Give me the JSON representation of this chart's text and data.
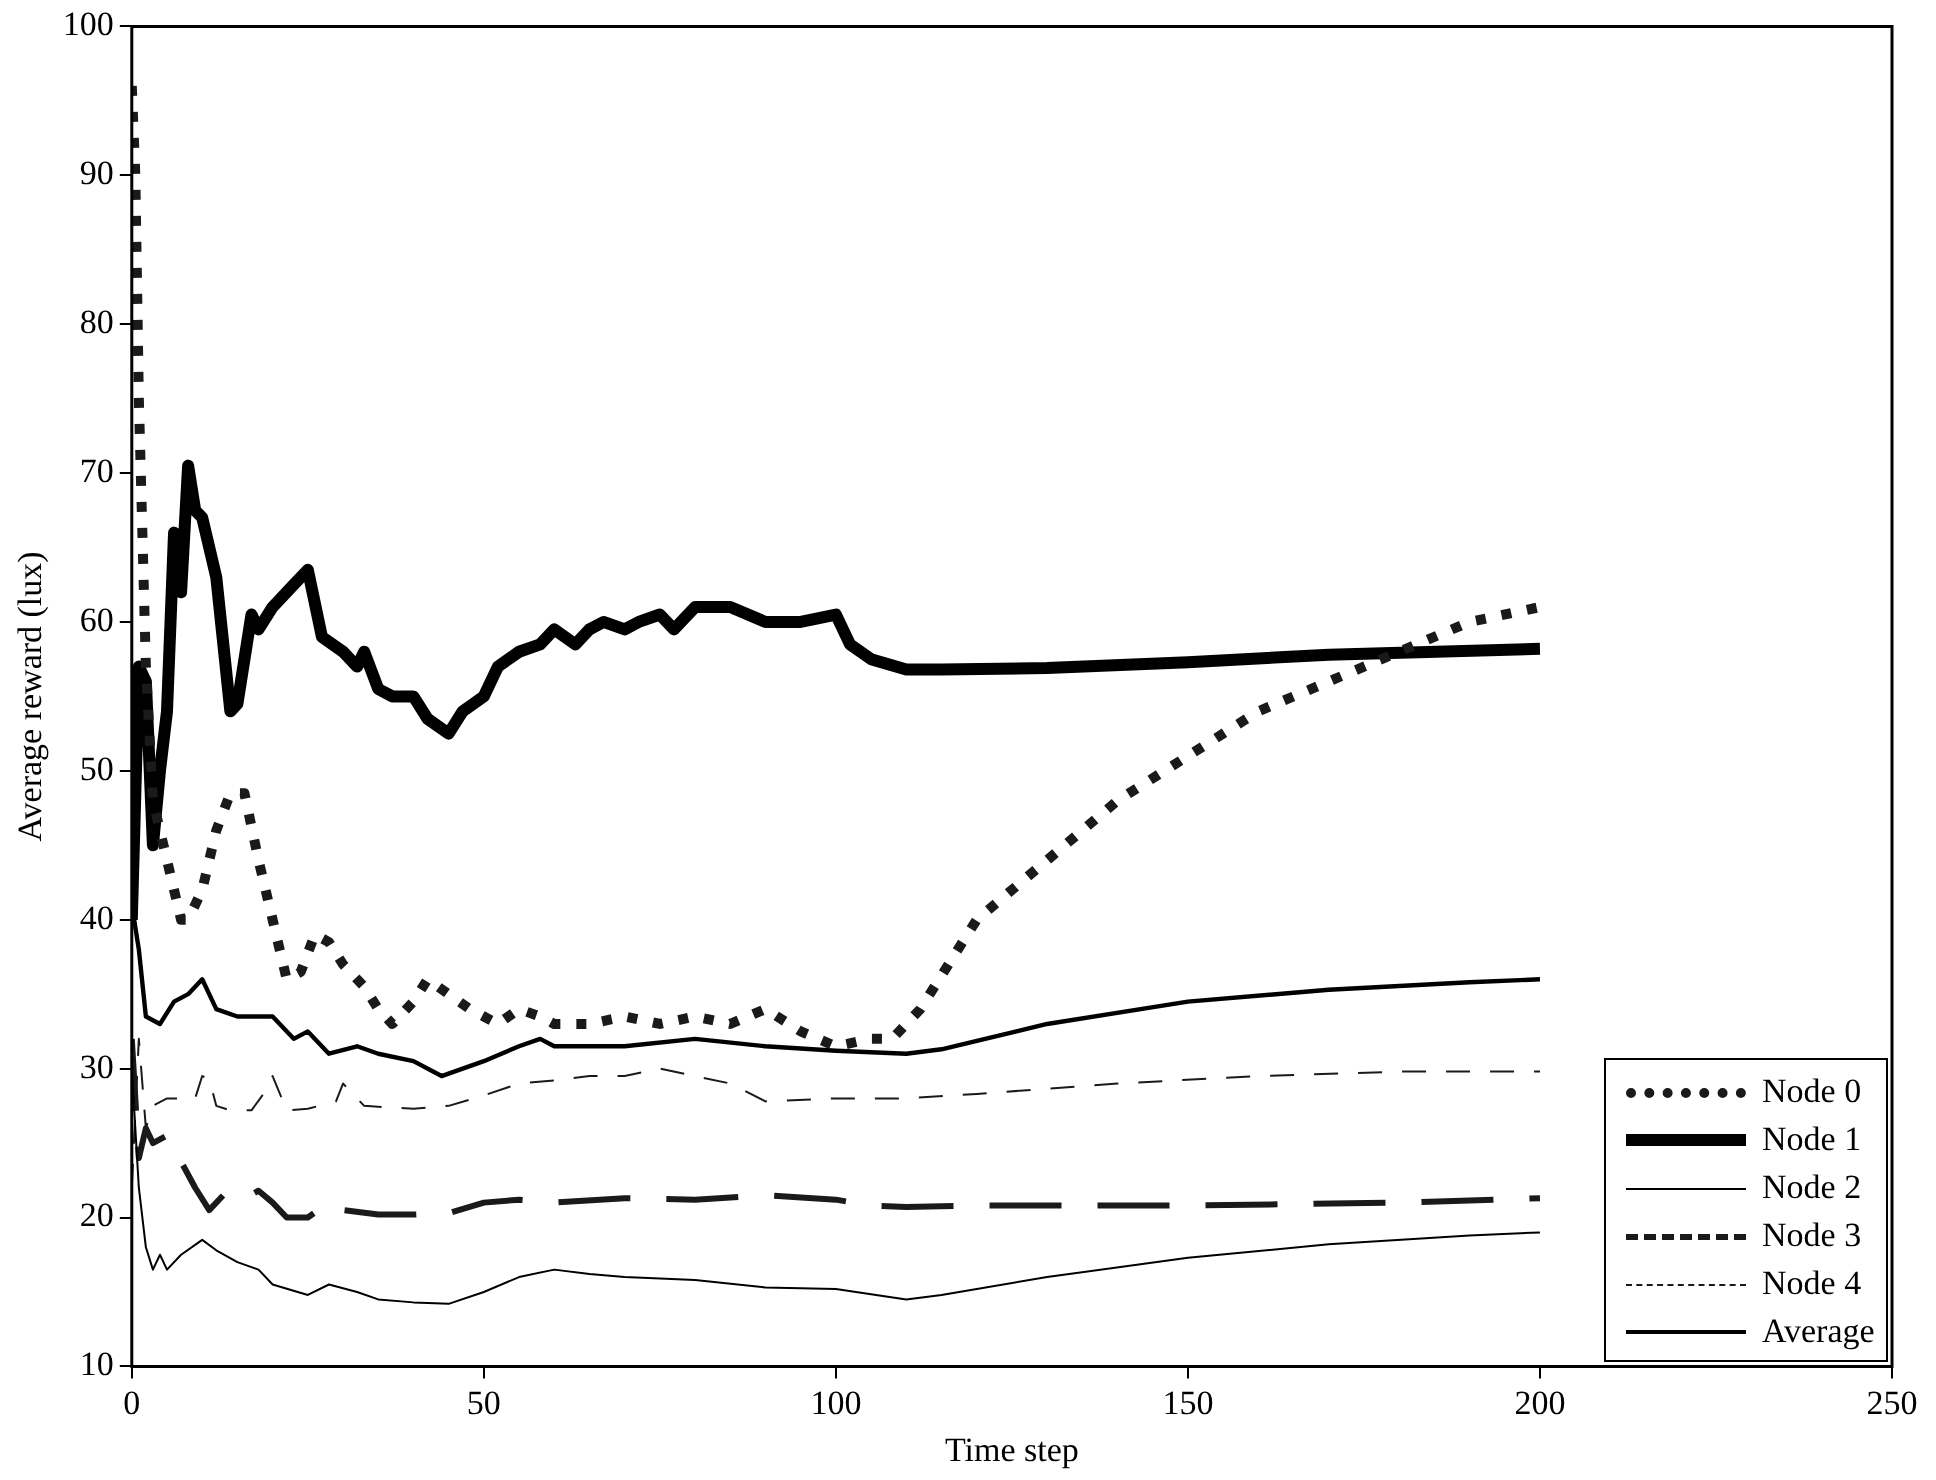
{
  "chart_data": {
    "type": "line",
    "xlabel": "Time step",
    "ylabel": "Average reward (lux)",
    "xlim": [
      0,
      250
    ],
    "ylim": [
      10,
      100
    ],
    "xticks": [
      0,
      50,
      100,
      150,
      200,
      250
    ],
    "yticks": [
      10,
      20,
      30,
      40,
      50,
      60,
      70,
      80,
      90,
      100
    ],
    "grid": false,
    "legend": "bottom right",
    "marker": "none",
    "series": [
      {
        "name": "Node 0",
        "color": "#1a1a1a",
        "line_style": "dotted",
        "x": [
          0,
          0.5,
          1,
          2,
          3,
          5,
          7,
          8,
          10,
          12,
          14,
          16,
          18,
          20,
          22,
          24,
          26,
          28,
          30,
          33,
          35,
          37,
          40,
          42,
          45,
          48,
          50,
          52,
          55,
          58,
          60,
          65,
          70,
          75,
          80,
          85,
          90,
          95,
          100,
          105,
          108,
          112,
          120,
          130,
          140,
          150,
          160,
          170,
          180,
          190,
          200
        ],
        "values": [
          96,
          90,
          75,
          57,
          48,
          44,
          40,
          40,
          42,
          46,
          48.5,
          48.5,
          44,
          40,
          36,
          36.5,
          39,
          38.5,
          37,
          35.5,
          34,
          33,
          34.5,
          36,
          35,
          34,
          33.5,
          33,
          34,
          33.5,
          33,
          33,
          33.5,
          33,
          33.5,
          33,
          34,
          32.5,
          31.5,
          32,
          32,
          34,
          40,
          44,
          48,
          51,
          54,
          56,
          58,
          60,
          61
        ]
      },
      {
        "name": "Node 1",
        "color": "#000000",
        "line_style": "solid",
        "x": [
          0,
          1,
          2,
          3,
          4,
          5,
          6,
          7,
          8,
          9,
          10,
          12,
          14,
          15,
          17,
          18,
          20,
          23,
          25,
          27,
          30,
          32,
          33,
          35,
          37,
          40,
          42,
          45,
          47,
          50,
          52,
          55,
          58,
          60,
          63,
          65,
          67,
          70,
          72,
          75,
          77,
          80,
          85,
          90,
          95,
          100,
          102,
          105,
          110,
          115,
          130,
          150,
          170,
          200
        ],
        "values": [
          40,
          57,
          56,
          45,
          50,
          54,
          66,
          62,
          70.5,
          67.5,
          67,
          63,
          54,
          54.5,
          60.5,
          59.5,
          61,
          62.5,
          63.5,
          59,
          58,
          57,
          58,
          55.5,
          55,
          55,
          53.5,
          52.5,
          54,
          55,
          57,
          58,
          58.5,
          59.5,
          58.5,
          59.5,
          60,
          59.5,
          60,
          60.5,
          59.5,
          61,
          61,
          60,
          60,
          60.5,
          58.5,
          57.5,
          56.8,
          56.8,
          56.9,
          57.3,
          57.8,
          58.2
        ]
      },
      {
        "name": "Node 2",
        "color": "#000000",
        "line_style": "solid",
        "x": [
          0,
          1,
          2,
          3,
          4,
          5,
          7,
          10,
          12,
          15,
          18,
          20,
          25,
          28,
          32,
          35,
          40,
          45,
          50,
          55,
          60,
          65,
          70,
          80,
          90,
          100,
          110,
          115,
          130,
          150,
          170,
          190,
          200
        ],
        "values": [
          30,
          22,
          18,
          16.5,
          17.5,
          16.5,
          17.5,
          18.5,
          17.8,
          17,
          16.5,
          15.5,
          14.8,
          15.5,
          15,
          14.5,
          14.3,
          14.2,
          15,
          16,
          16.5,
          16.2,
          16,
          15.8,
          15.3,
          15.2,
          14.5,
          14.8,
          16,
          17.3,
          18.2,
          18.8,
          19
        ]
      },
      {
        "name": "Node 3",
        "color": "#1a1a1a",
        "line_style": "dashed",
        "x": [
          0,
          1,
          2,
          3,
          5,
          9,
          11,
          13,
          15,
          18,
          20,
          22,
          25,
          28,
          30,
          35,
          40,
          45,
          50,
          55,
          60,
          70,
          80,
          90,
          100,
          105,
          110,
          120,
          150,
          180,
          200
        ],
        "values": [
          32,
          24,
          26,
          25,
          25.5,
          22,
          20.5,
          21.5,
          21,
          21.8,
          21,
          20,
          20,
          21,
          20.5,
          20.2,
          20.2,
          20.3,
          21,
          21.2,
          21,
          21.3,
          21.2,
          21.5,
          21.2,
          20.8,
          20.7,
          20.8,
          20.8,
          21,
          21.3
        ]
      },
      {
        "name": "Node 4",
        "color": "#1a1a1a",
        "line_style": "dashed",
        "x": [
          0,
          1,
          2,
          3,
          5,
          9,
          10,
          11,
          12,
          14,
          17,
          19,
          20,
          22,
          25,
          29,
          30,
          33,
          40,
          45,
          50,
          55,
          60,
          65,
          70,
          75,
          80,
          85,
          90,
          100,
          110,
          120,
          140,
          160,
          180,
          200
        ],
        "values": [
          22,
          32,
          26,
          27.5,
          28,
          28,
          29.5,
          29.3,
          27.5,
          27.2,
          27.2,
          28.5,
          29.5,
          27.2,
          27.3,
          27.8,
          29,
          27.5,
          27.3,
          27.5,
          28.2,
          29,
          29.2,
          29.5,
          29.5,
          30,
          29.5,
          29,
          27.8,
          28,
          28,
          28.3,
          29,
          29.5,
          29.8,
          29.8
        ]
      },
      {
        "name": "Average",
        "color": "#000000",
        "line_style": "solid",
        "x": [
          0,
          1,
          2,
          4,
          6,
          8,
          10,
          12,
          15,
          18,
          20,
          23,
          25,
          28,
          32,
          35,
          40,
          44,
          50,
          55,
          58,
          60,
          70,
          80,
          90,
          100,
          110,
          115,
          130,
          150,
          170,
          190,
          200
        ],
        "values": [
          41,
          38,
          33.5,
          33,
          34.5,
          35,
          36,
          34,
          33.5,
          33.5,
          33.5,
          32,
          32.5,
          31,
          31.5,
          31,
          30.5,
          29.5,
          30.5,
          31.5,
          32,
          31.5,
          31.5,
          32,
          31.5,
          31.2,
          31,
          31.3,
          33,
          34.5,
          35.3,
          35.8,
          36
        ]
      }
    ]
  }
}
